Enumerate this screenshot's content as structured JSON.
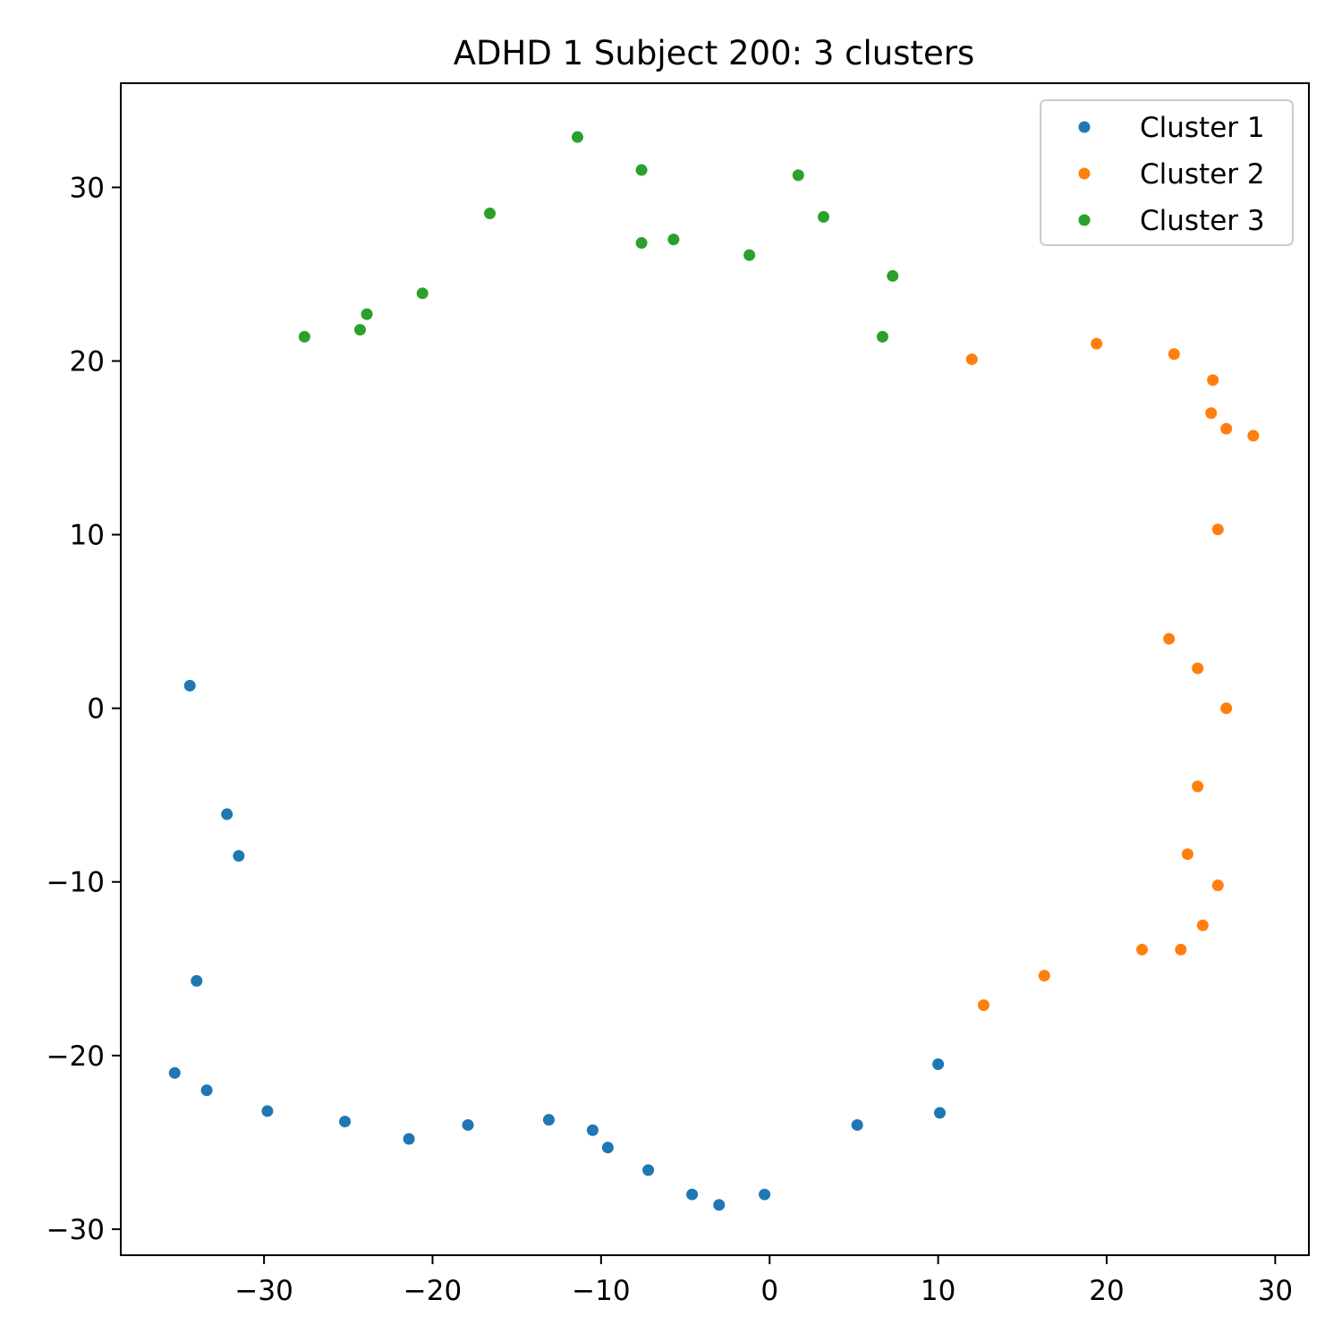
{
  "chart_data": {
    "type": "scatter",
    "title": "ADHD 1 Subject 200: 3 clusters",
    "xlabel": "",
    "ylabel": "",
    "xlim": [
      -38.5,
      32.0
    ],
    "ylim": [
      -31.5,
      36.0
    ],
    "xticks": [
      -30,
      -20,
      -10,
      0,
      10,
      20,
      30
    ],
    "yticks": [
      -30,
      -20,
      -10,
      0,
      10,
      20,
      30
    ],
    "xtick_labels": [
      "−30",
      "−20",
      "−10",
      "0",
      "10",
      "20",
      "30"
    ],
    "ytick_labels": [
      "−30",
      "−20",
      "−10",
      "0",
      "10",
      "20",
      "30"
    ],
    "grid": false,
    "legend_position": "top-right",
    "series": [
      {
        "name": "Cluster 1",
        "color": "#1f77b4",
        "points": [
          [
            -34.4,
            1.3
          ],
          [
            -32.2,
            -6.1
          ],
          [
            -31.5,
            -8.5
          ],
          [
            -34.0,
            -15.7
          ],
          [
            -35.3,
            -21.0
          ],
          [
            -33.4,
            -22.0
          ],
          [
            -29.8,
            -23.2
          ],
          [
            -25.2,
            -23.8
          ],
          [
            -21.4,
            -24.8
          ],
          [
            -17.9,
            -24.0
          ],
          [
            -13.1,
            -23.7
          ],
          [
            -10.5,
            -24.3
          ],
          [
            -9.6,
            -25.3
          ],
          [
            -7.2,
            -26.6
          ],
          [
            -4.6,
            -28.0
          ],
          [
            -3.0,
            -28.6
          ],
          [
            -0.3,
            -28.0
          ],
          [
            5.2,
            -24.0
          ],
          [
            10.0,
            -20.5
          ],
          [
            10.1,
            -23.3
          ]
        ]
      },
      {
        "name": "Cluster 2",
        "color": "#ff7f0e",
        "points": [
          [
            12.0,
            20.1
          ],
          [
            19.4,
            21.0
          ],
          [
            24.0,
            20.4
          ],
          [
            26.3,
            18.9
          ],
          [
            26.2,
            17.0
          ],
          [
            27.1,
            16.1
          ],
          [
            28.7,
            15.7
          ],
          [
            26.6,
            10.3
          ],
          [
            23.7,
            4.0
          ],
          [
            25.4,
            2.3
          ],
          [
            27.1,
            0.0
          ],
          [
            25.4,
            -4.5
          ],
          [
            24.8,
            -8.4
          ],
          [
            26.6,
            -10.2
          ],
          [
            25.7,
            -12.5
          ],
          [
            24.4,
            -13.9
          ],
          [
            22.1,
            -13.9
          ],
          [
            16.3,
            -15.4
          ],
          [
            12.7,
            -17.1
          ]
        ]
      },
      {
        "name": "Cluster 3",
        "color": "#2ca02c",
        "points": [
          [
            -11.4,
            32.9
          ],
          [
            -7.6,
            31.0
          ],
          [
            1.7,
            30.7
          ],
          [
            3.2,
            28.3
          ],
          [
            -16.6,
            28.5
          ],
          [
            -7.6,
            26.8
          ],
          [
            -5.7,
            27.0
          ],
          [
            -1.2,
            26.1
          ],
          [
            7.3,
            24.9
          ],
          [
            -20.6,
            23.9
          ],
          [
            -23.9,
            22.7
          ],
          [
            -24.3,
            21.8
          ],
          [
            -27.6,
            21.4
          ],
          [
            6.7,
            21.4
          ]
        ]
      }
    ]
  }
}
